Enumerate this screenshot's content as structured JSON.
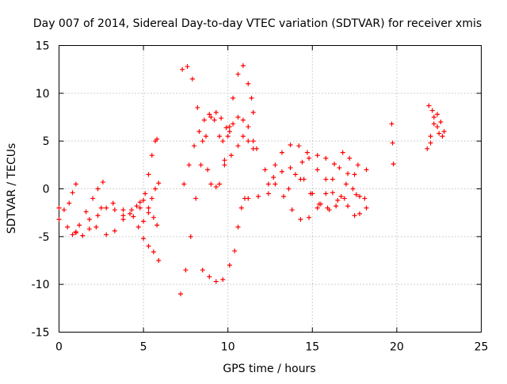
{
  "chart_data": {
    "type": "scatter",
    "title": "Day 007 of 2014, Sidereal Day-to-day VTEC variation (SDTVAR) for receiver xmis",
    "xlabel": "GPS time / hours",
    "ylabel": "SDTVAR / TECUs",
    "xlim": [
      0,
      25
    ],
    "ylim": [
      -15,
      15
    ],
    "x_ticks": [
      "0",
      "5",
      "10",
      "15",
      "20",
      "25"
    ],
    "y_ticks": [
      "-15",
      "-10",
      "-5",
      "0",
      "5",
      "10",
      "15"
    ],
    "grid": true,
    "legend": "none",
    "marker": "plus",
    "color": "#ff0000",
    "series": [
      {
        "points": [
          [
            0,
            -3.2
          ],
          [
            0.5,
            -4.0
          ],
          [
            1.0,
            -4.6
          ],
          [
            1.4,
            -4.9
          ],
          [
            1.8,
            -4.2
          ],
          [
            2.3,
            -2.8
          ],
          [
            2.8,
            -2.0
          ],
          [
            3.3,
            -2.2
          ],
          [
            3.8,
            -2.8
          ],
          [
            4.2,
            -2.6
          ],
          [
            4.6,
            -1.8
          ],
          [
            5.0,
            -1.2
          ],
          [
            5.3,
            -2.0
          ],
          [
            5.6,
            -3.0
          ],
          [
            5.8,
            -3.8
          ]
        ]
      },
      {
        "points": [
          [
            0,
            -2.0
          ],
          [
            0.3,
            -2.2
          ],
          [
            0.6,
            -1.5
          ],
          [
            0.8,
            -0.4
          ],
          [
            1.0,
            0.5
          ]
        ]
      },
      {
        "points": [
          [
            0.8,
            -4.8
          ],
          [
            1.2,
            -3.8
          ],
          [
            1.6,
            -2.4
          ],
          [
            2.0,
            -1.0
          ],
          [
            2.3,
            0.0
          ],
          [
            2.6,
            0.7
          ]
        ]
      },
      {
        "points": [
          [
            2.2,
            -4.0
          ],
          [
            2.8,
            -4.8
          ],
          [
            3.3,
            -4.4
          ],
          [
            3.8,
            -3.2
          ],
          [
            4.3,
            -2.2
          ],
          [
            4.8,
            -1.4
          ]
        ]
      },
      {
        "points": [
          [
            1.0,
            -4.5
          ],
          [
            1.8,
            -3.2
          ],
          [
            2.5,
            -2.0
          ],
          [
            3.2,
            -1.5
          ],
          [
            3.8,
            -2.2
          ],
          [
            4.4,
            -2.9
          ],
          [
            5.0,
            -3.4
          ]
        ]
      },
      {
        "points": [
          [
            4.7,
            -4.0
          ],
          [
            5.0,
            -5.2
          ],
          [
            5.3,
            -6.0
          ],
          [
            5.6,
            -6.6
          ],
          [
            5.9,
            -7.5
          ]
        ]
      },
      {
        "points": [
          [
            4.8,
            -2.0
          ],
          [
            5.1,
            -0.5
          ],
          [
            5.3,
            1.5
          ],
          [
            5.5,
            3.5
          ],
          [
            5.7,
            5.0
          ],
          [
            5.8,
            5.2
          ]
        ]
      },
      {
        "points": [
          [
            5.3,
            -2.5
          ],
          [
            5.5,
            -1.0
          ],
          [
            5.7,
            0.0
          ],
          [
            5.9,
            0.6
          ]
        ]
      },
      {
        "points": [
          [
            7.2,
            -11.0
          ],
          [
            7.5,
            -8.5
          ],
          [
            7.8,
            -5.0
          ],
          [
            8.1,
            -1.0
          ],
          [
            8.4,
            2.5
          ],
          [
            8.7,
            5.5
          ],
          [
            9.0,
            7.5
          ],
          [
            9.3,
            8.0
          ],
          [
            9.6,
            7.4
          ],
          [
            9.9,
            6.4
          ],
          [
            10.1,
            6.0
          ]
        ]
      },
      {
        "points": [
          [
            7.3,
            12.5
          ],
          [
            7.6,
            12.8
          ],
          [
            7.9,
            11.5
          ],
          [
            8.2,
            8.5
          ],
          [
            8.5,
            5.0
          ],
          [
            8.8,
            2.0
          ],
          [
            9.0,
            0.5
          ],
          [
            9.3,
            0.2
          ]
        ]
      },
      {
        "points": [
          [
            7.4,
            0.5
          ],
          [
            7.7,
            2.5
          ],
          [
            8.0,
            4.5
          ],
          [
            8.3,
            6.0
          ],
          [
            8.6,
            7.2
          ],
          [
            8.9,
            7.8
          ],
          [
            9.2,
            7.2
          ],
          [
            9.5,
            5.5
          ],
          [
            9.7,
            5.0
          ],
          [
            10.0,
            5.5
          ],
          [
            10.3,
            6.8
          ],
          [
            10.6,
            7.5
          ],
          [
            10.9,
            7.2
          ],
          [
            11.2,
            6.5
          ],
          [
            11.5,
            5.0
          ],
          [
            11.7,
            4.2
          ]
        ]
      },
      {
        "points": [
          [
            8.5,
            -8.5
          ],
          [
            8.9,
            -9.2
          ],
          [
            9.3,
            -9.7
          ],
          [
            9.7,
            -9.5
          ],
          [
            10.1,
            -8.0
          ],
          [
            10.4,
            -6.5
          ],
          [
            10.6,
            -4.0
          ],
          [
            10.8,
            -2.0
          ],
          [
            11.0,
            -1.0
          ]
        ]
      },
      {
        "points": [
          [
            9.5,
            0.5
          ],
          [
            9.8,
            3.0
          ],
          [
            10.1,
            6.5
          ],
          [
            10.3,
            9.5
          ],
          [
            10.6,
            12.0
          ],
          [
            10.9,
            12.9
          ],
          [
            11.2,
            11.0
          ],
          [
            11.4,
            9.5
          ],
          [
            11.5,
            8.0
          ]
        ]
      },
      {
        "points": [
          [
            9.8,
            2.5
          ],
          [
            10.2,
            3.5
          ],
          [
            10.6,
            4.5
          ],
          [
            10.9,
            5.5
          ],
          [
            11.2,
            5.0
          ],
          [
            11.5,
            4.2
          ]
        ]
      },
      {
        "points": [
          [
            11.2,
            -1.0
          ],
          [
            11.8,
            -0.8
          ],
          [
            12.4,
            -0.5
          ],
          [
            12.8,
            0.5
          ],
          [
            13.2,
            1.8
          ],
          [
            13.7,
            2.2
          ],
          [
            14.3,
            1.0
          ],
          [
            14.9,
            -0.5
          ],
          [
            15.4,
            -1.6
          ],
          [
            15.9,
            -2.0
          ],
          [
            16.4,
            -1.8
          ],
          [
            16.9,
            -1.0
          ],
          [
            17.4,
            0.0
          ],
          [
            17.8,
            -0.8
          ],
          [
            18.2,
            -2.0
          ]
        ]
      },
      {
        "points": [
          [
            12.4,
            0.5
          ],
          [
            12.8,
            2.5
          ],
          [
            13.2,
            3.8
          ],
          [
            13.7,
            4.6
          ],
          [
            14.2,
            4.5
          ],
          [
            14.7,
            3.8
          ],
          [
            15.3,
            3.5
          ],
          [
            15.8,
            3.2
          ],
          [
            16.3,
            2.6
          ],
          [
            16.8,
            3.8
          ],
          [
            17.2,
            3.2
          ],
          [
            17.7,
            2.5
          ],
          [
            18.2,
            2.0
          ]
        ]
      },
      {
        "points": [
          [
            12.2,
            2.0
          ],
          [
            12.7,
            1.2
          ],
          [
            13.3,
            -0.8
          ],
          [
            13.8,
            -2.2
          ],
          [
            14.3,
            -3.2
          ],
          [
            14.8,
            -3.0
          ],
          [
            15.3,
            -2.0
          ],
          [
            15.8,
            -0.5
          ],
          [
            16.2,
            1.0
          ],
          [
            16.6,
            2.2
          ],
          [
            17.1,
            1.6
          ],
          [
            17.6,
            -0.6
          ],
          [
            18.1,
            -1.0
          ]
        ]
      },
      {
        "points": [
          [
            13.6,
            0.0
          ],
          [
            14.0,
            1.5
          ],
          [
            14.4,
            2.8
          ],
          [
            14.8,
            3.2
          ],
          [
            15.3,
            2.0
          ],
          [
            15.8,
            1.0
          ],
          [
            16.2,
            -0.4
          ],
          [
            16.7,
            -0.8
          ],
          [
            17.1,
            -1.8
          ],
          [
            17.5,
            -2.8
          ],
          [
            17.8,
            -2.6
          ]
        ]
      },
      {
        "points": [
          [
            14.5,
            1.0
          ],
          [
            15.0,
            -0.5
          ],
          [
            15.5,
            -1.6
          ],
          [
            16.0,
            -2.2
          ],
          [
            16.5,
            -1.2
          ],
          [
            17.0,
            0.5
          ],
          [
            17.5,
            1.5
          ]
        ]
      },
      {
        "points": [
          [
            19.7,
            6.8
          ],
          [
            19.75,
            4.8
          ],
          [
            19.8,
            2.6
          ]
        ]
      },
      {
        "points": [
          [
            21.8,
            4.2
          ],
          [
            22.0,
            5.5
          ],
          [
            22.2,
            6.8
          ],
          [
            22.4,
            7.8
          ],
          [
            22.6,
            7.0
          ],
          [
            22.8,
            6.0
          ],
          [
            22.5,
            5.8
          ],
          [
            22.2,
            7.5
          ],
          [
            21.9,
            8.7
          ],
          [
            22.1,
            8.2
          ],
          [
            22.4,
            6.5
          ],
          [
            22.7,
            5.5
          ],
          [
            22.0,
            4.8
          ]
        ]
      }
    ]
  }
}
